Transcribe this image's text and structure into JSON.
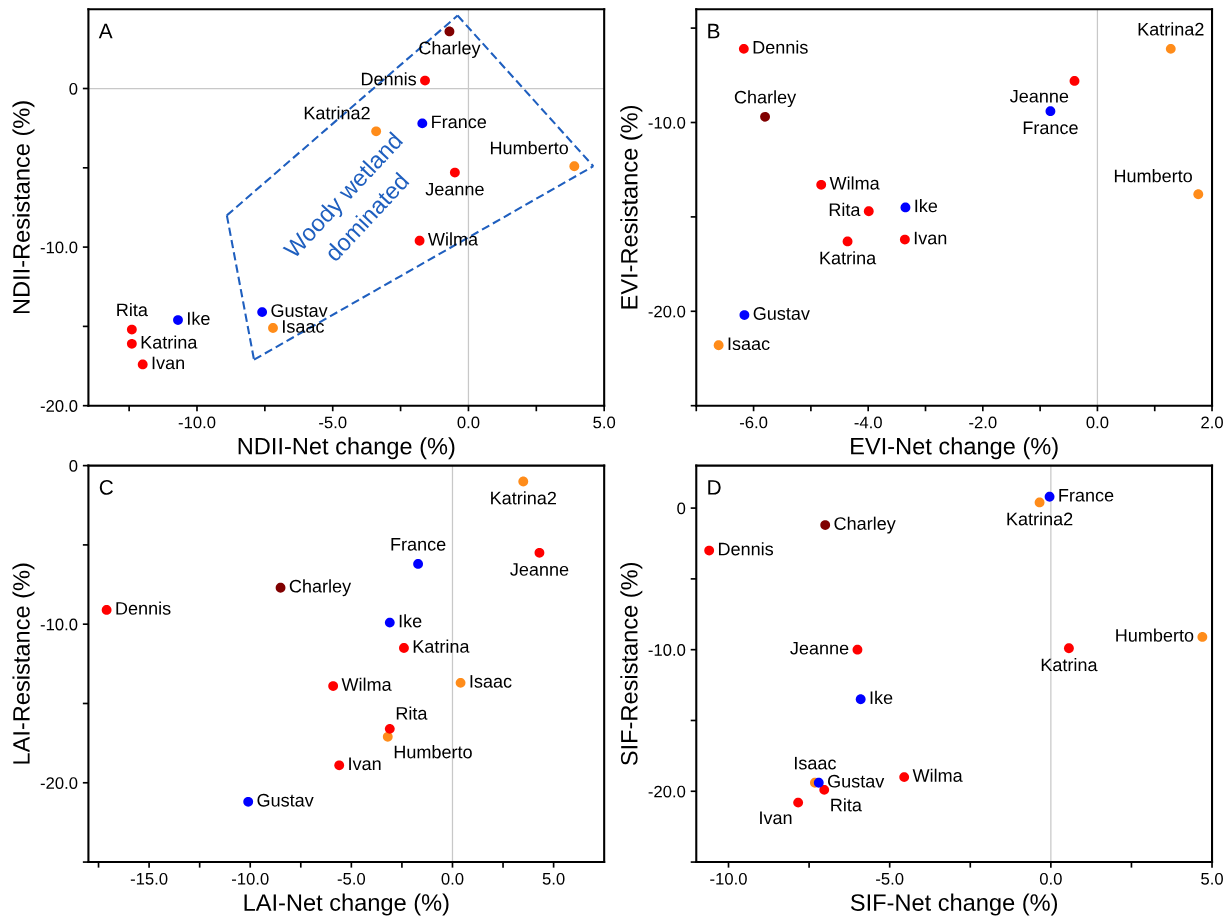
{
  "chart_data": [
    {
      "type": "scatter",
      "title": "A",
      "xlabel": "NDII-Net change (%)",
      "ylabel": "NDII-Resistance (%)",
      "marker": "circle",
      "legend": false,
      "grid": false,
      "xlim": [
        -14,
        5
      ],
      "ylim": [
        -20,
        5
      ],
      "xticks": [
        {
          "value": -12.5,
          "label": null
        },
        {
          "value": -10,
          "label": "-10.0"
        },
        {
          "value": -7.5,
          "label": null
        },
        {
          "value": -5,
          "label": "-5.0"
        },
        {
          "value": -2.5,
          "label": null
        },
        {
          "value": 0,
          "label": "0.0"
        },
        {
          "value": 2.5,
          "label": null
        },
        {
          "value": 5,
          "label": "5.0"
        }
      ],
      "yticks": [
        {
          "value": -20,
          "label": "-20.0"
        },
        {
          "value": -15,
          "label": null
        },
        {
          "value": -10,
          "label": "-10.0"
        },
        {
          "value": -5,
          "label": null
        },
        0
      ],
      "ref_lines": [
        {
          "axis": "x",
          "value": 0,
          "color": "#c8c8c8"
        },
        {
          "axis": "y",
          "value": 0,
          "color": "#c8c8c8"
        }
      ],
      "annotations": [
        "Woody wetland\ndominated"
      ],
      "series": [
        {
          "name": "Charley",
          "color": "#800000",
          "x": [
            -0.7
          ],
          "values": [
            3.6
          ]
        },
        {
          "name": "Dennis",
          "color": "#ff0000",
          "x": [
            -1.6
          ],
          "values": [
            0.5
          ]
        },
        {
          "name": "France",
          "color": "#0000ff",
          "x": [
            -1.7
          ],
          "values": [
            -2.2
          ]
        },
        {
          "name": "Katrina2",
          "color": "#ff8c1a",
          "x": [
            -3.4
          ],
          "values": [
            -2.7
          ]
        },
        {
          "name": "Humberto",
          "color": "#ff8c1a",
          "x": [
            3.9
          ],
          "values": [
            -4.9
          ]
        },
        {
          "name": "Jeanne",
          "color": "#ff0000",
          "x": [
            -0.5
          ],
          "values": [
            -5.3
          ]
        },
        {
          "name": "Wilma",
          "color": "#ff0000",
          "x": [
            -1.8
          ],
          "values": [
            -9.6
          ]
        },
        {
          "name": "Gustav",
          "color": "#0000ff",
          "x": [
            -7.6
          ],
          "values": [
            -14.1
          ]
        },
        {
          "name": "Isaac",
          "color": "#ff8c1a",
          "x": [
            -7.2
          ],
          "values": [
            -15.1
          ]
        },
        {
          "name": "Ike",
          "color": "#0000ff",
          "x": [
            -10.7
          ],
          "values": [
            -14.6
          ]
        },
        {
          "name": "Rita",
          "color": "#ff0000",
          "x": [
            -12.4
          ],
          "values": [
            -15.2
          ]
        },
        {
          "name": "Katrina",
          "color": "#ff0000",
          "x": [
            -12.4
          ],
          "values": [
            -16.1
          ]
        },
        {
          "name": "Ivan",
          "color": "#ff0000",
          "x": [
            -12.0
          ],
          "values": [
            -17.4
          ]
        },
        {
          "type": "line",
          "marker": "none",
          "line_style": "dashed",
          "color": "#1f5fbf",
          "x": [
            -0.4,
            4.6
          ],
          "values": [
            4.6,
            -4.9
          ]
        },
        {
          "type": "line",
          "marker": "none",
          "line_style": "dashed",
          "color": "#1f5fbf",
          "x": [
            -7.9,
            4.6
          ],
          "values": [
            -17.1,
            -4.9
          ]
        },
        {
          "type": "line",
          "marker": "none",
          "line_style": "dashed",
          "color": "#1f5fbf",
          "x": [
            -8.9,
            -7.9
          ],
          "values": [
            -8.0,
            -17.1
          ]
        },
        {
          "type": "line",
          "marker": "none",
          "line_style": "dashed",
          "color": "#1f5fbf",
          "x": [
            -8.9,
            -0.4
          ],
          "values": [
            -8.0,
            4.6
          ]
        }
      ]
    },
    {
      "type": "scatter",
      "title": "B",
      "xlabel": "EVI-Net change (%)",
      "ylabel": "EVI-Resistance (%)",
      "marker": "circle",
      "legend": false,
      "grid": false,
      "xlim": [
        -7,
        2
      ],
      "ylim": [
        -25,
        -4
      ],
      "xticks": [
        {
          "value": -7,
          "label": null
        },
        {
          "value": -6,
          "label": "-6.0"
        },
        {
          "value": -5,
          "label": null
        },
        {
          "value": -4,
          "label": "-4.0"
        },
        {
          "value": -3,
          "label": null
        },
        {
          "value": -2,
          "label": "-2.0"
        },
        {
          "value": -1,
          "label": null
        },
        {
          "value": 0,
          "label": "0.0"
        },
        {
          "value": 1,
          "label": null
        },
        {
          "value": 2,
          "label": "2.0"
        }
      ],
      "yticks": [
        {
          "value": -25,
          "label": null
        },
        {
          "value": -20,
          "label": "-20.0"
        },
        {
          "value": -15,
          "label": null
        },
        {
          "value": -10,
          "label": "-10.0"
        },
        {
          "value": -5,
          "label": null
        }
      ],
      "ref_lines": [
        {
          "axis": "x",
          "value": 0,
          "color": "#c8c8c8"
        }
      ],
      "series": [
        {
          "name": "Charley",
          "color": "#800000",
          "x": [
            -5.8
          ],
          "values": [
            -9.7
          ]
        },
        {
          "name": "Dennis",
          "color": "#ff0000",
          "x": [
            -6.17
          ],
          "values": [
            -6.1
          ]
        },
        {
          "name": "France",
          "color": "#0000ff",
          "x": [
            -0.82
          ],
          "values": [
            -9.4
          ]
        },
        {
          "name": "Katrina2",
          "color": "#ff8c1a",
          "x": [
            1.28
          ],
          "values": [
            -6.1
          ]
        },
        {
          "name": "Humberto",
          "color": "#ff8c1a",
          "x": [
            1.76
          ],
          "values": [
            -13.8
          ]
        },
        {
          "name": "Jeanne",
          "color": "#ff0000",
          "x": [
            -0.4
          ],
          "values": [
            -7.8
          ]
        },
        {
          "name": "Wilma",
          "color": "#ff0000",
          "x": [
            -4.82
          ],
          "values": [
            -13.3
          ]
        },
        {
          "name": "Gustav",
          "color": "#0000ff",
          "x": [
            -6.16
          ],
          "values": [
            -20.2
          ]
        },
        {
          "name": "Isaac",
          "color": "#ff8c1a",
          "x": [
            -6.61
          ],
          "values": [
            -21.8
          ]
        },
        {
          "name": "Ike",
          "color": "#0000ff",
          "x": [
            -3.35
          ],
          "values": [
            -14.5
          ]
        },
        {
          "name": "Rita",
          "color": "#ff0000",
          "x": [
            -3.99
          ],
          "values": [
            -14.7
          ]
        },
        {
          "name": "Katrina",
          "color": "#ff0000",
          "x": [
            -4.36
          ],
          "values": [
            -16.3
          ]
        },
        {
          "name": "Ivan",
          "color": "#ff0000",
          "x": [
            -3.36
          ],
          "values": [
            -16.2
          ]
        }
      ]
    },
    {
      "type": "scatter",
      "title": "C",
      "xlabel": "LAI-Net change (%)",
      "ylabel": "LAI-Resistance (%)",
      "marker": "circle",
      "legend": false,
      "grid": false,
      "xlim": [
        -18,
        7.5
      ],
      "ylim": [
        -25,
        0
      ],
      "xticks": [
        {
          "value": -17.5,
          "label": null
        },
        {
          "value": -15,
          "label": "-15.0"
        },
        {
          "value": -12.5,
          "label": null
        },
        {
          "value": -10,
          "label": "-10.0"
        },
        {
          "value": -7.5,
          "label": null
        },
        {
          "value": -5,
          "label": "-5.0"
        },
        {
          "value": -2.5,
          "label": null
        },
        {
          "value": 0,
          "label": "0.0"
        },
        {
          "value": 2.5,
          "label": null
        },
        {
          "value": 5,
          "label": "5.0"
        }
      ],
      "yticks": [
        {
          "value": -25,
          "label": null
        },
        {
          "value": -20,
          "label": "-20.0"
        },
        {
          "value": -15,
          "label": null
        },
        {
          "value": -10,
          "label": "-10.0"
        },
        {
          "value": -5,
          "label": null
        },
        0
      ],
      "ref_lines": [
        {
          "axis": "x",
          "value": 0,
          "color": "#c8c8c8"
        }
      ],
      "series": [
        {
          "name": "Charley",
          "color": "#800000",
          "x": [
            -8.5
          ],
          "values": [
            -7.7
          ]
        },
        {
          "name": "Dennis",
          "color": "#ff0000",
          "x": [
            -17.1
          ],
          "values": [
            -9.1
          ]
        },
        {
          "name": "France",
          "color": "#0000ff",
          "x": [
            -1.7
          ],
          "values": [
            -6.2
          ]
        },
        {
          "name": "Katrina2",
          "color": "#ff8c1a",
          "x": [
            3.5
          ],
          "values": [
            -1.0
          ]
        },
        {
          "name": "Humberto",
          "color": "#ff8c1a",
          "x": [
            -3.2
          ],
          "values": [
            -17.1
          ]
        },
        {
          "name": "Jeanne",
          "color": "#ff0000",
          "x": [
            4.3
          ],
          "values": [
            -5.5
          ]
        },
        {
          "name": "Wilma",
          "color": "#ff0000",
          "x": [
            -5.9
          ],
          "values": [
            -13.9
          ]
        },
        {
          "name": "Gustav",
          "color": "#0000ff",
          "x": [
            -10.1
          ],
          "values": [
            -21.2
          ]
        },
        {
          "name": "Isaac",
          "color": "#ff8c1a",
          "x": [
            0.4
          ],
          "values": [
            -13.7
          ]
        },
        {
          "name": "Ike",
          "color": "#0000ff",
          "x": [
            -3.1
          ],
          "values": [
            -9.9
          ]
        },
        {
          "name": "Rita",
          "color": "#ff0000",
          "x": [
            -3.1
          ],
          "values": [
            -16.6
          ]
        },
        {
          "name": "Katrina",
          "color": "#ff0000",
          "x": [
            -2.4
          ],
          "values": [
            -11.5
          ]
        },
        {
          "name": "Ivan",
          "color": "#ff0000",
          "x": [
            -5.6
          ],
          "values": [
            -18.9
          ]
        }
      ]
    },
    {
      "type": "scatter",
      "title": "D",
      "xlabel": "SIF-Net change (%)",
      "ylabel": "SIF-Resistance (%)",
      "marker": "circle",
      "legend": false,
      "grid": false,
      "xlim": [
        -11,
        5
      ],
      "ylim": [
        -25,
        3
      ],
      "xticks": [
        {
          "value": -10,
          "label": "-10.0"
        },
        {
          "value": -7.5,
          "label": null
        },
        {
          "value": -5,
          "label": "-5.0"
        },
        {
          "value": -2.5,
          "label": null
        },
        {
          "value": 0,
          "label": "0.0"
        },
        {
          "value": 2.5,
          "label": null
        },
        {
          "value": 5,
          "label": "5.0"
        }
      ],
      "yticks": [
        {
          "value": -25,
          "label": null
        },
        {
          "value": -20,
          "label": "-20.0"
        },
        {
          "value": -15,
          "label": null
        },
        {
          "value": -10,
          "label": "-10.0"
        },
        {
          "value": -5,
          "label": null
        },
        0
      ],
      "ref_lines": [
        {
          "axis": "x",
          "value": 0,
          "color": "#c8c8c8"
        }
      ],
      "series": [
        {
          "name": "Charley",
          "color": "#800000",
          "x": [
            -7.0
          ],
          "values": [
            -1.2
          ]
        },
        {
          "name": "Dennis",
          "color": "#ff0000",
          "x": [
            -10.6
          ],
          "values": [
            -3.0
          ]
        },
        {
          "name": "France",
          "color": "#0000ff",
          "x": [
            -0.04
          ],
          "values": [
            0.8
          ]
        },
        {
          "name": "Katrina2",
          "color": "#ff8c1a",
          "x": [
            -0.35
          ],
          "values": [
            0.4
          ]
        },
        {
          "name": "Humberto",
          "color": "#ff8c1a",
          "x": [
            4.7
          ],
          "values": [
            -9.1
          ]
        },
        {
          "name": "Jeanne",
          "color": "#ff0000",
          "x": [
            -6.0
          ],
          "values": [
            -10.0
          ]
        },
        {
          "name": "Wilma",
          "color": "#ff0000",
          "x": [
            -4.55
          ],
          "values": [
            -19.0
          ]
        },
        {
          "name": "Isaac",
          "color": "#ff8c1a",
          "x": [
            -7.32
          ],
          "values": [
            -19.4
          ]
        },
        {
          "name": "Ike",
          "color": "#0000ff",
          "x": [
            -5.9
          ],
          "values": [
            -13.5
          ]
        },
        {
          "name": "Rita",
          "color": "#ff0000",
          "x": [
            -7.03
          ],
          "values": [
            -19.9
          ]
        },
        {
          "name": "Katrina",
          "color": "#ff0000",
          "x": [
            0.56
          ],
          "values": [
            -9.9
          ]
        },
        {
          "name": "Ivan",
          "color": "#ff0000",
          "x": [
            -7.84
          ],
          "values": [
            -20.8
          ]
        },
        {
          "name": "Gustav",
          "color": "#0000ff",
          "x": [
            -7.2
          ],
          "values": [
            -19.4
          ]
        }
      ]
    }
  ]
}
